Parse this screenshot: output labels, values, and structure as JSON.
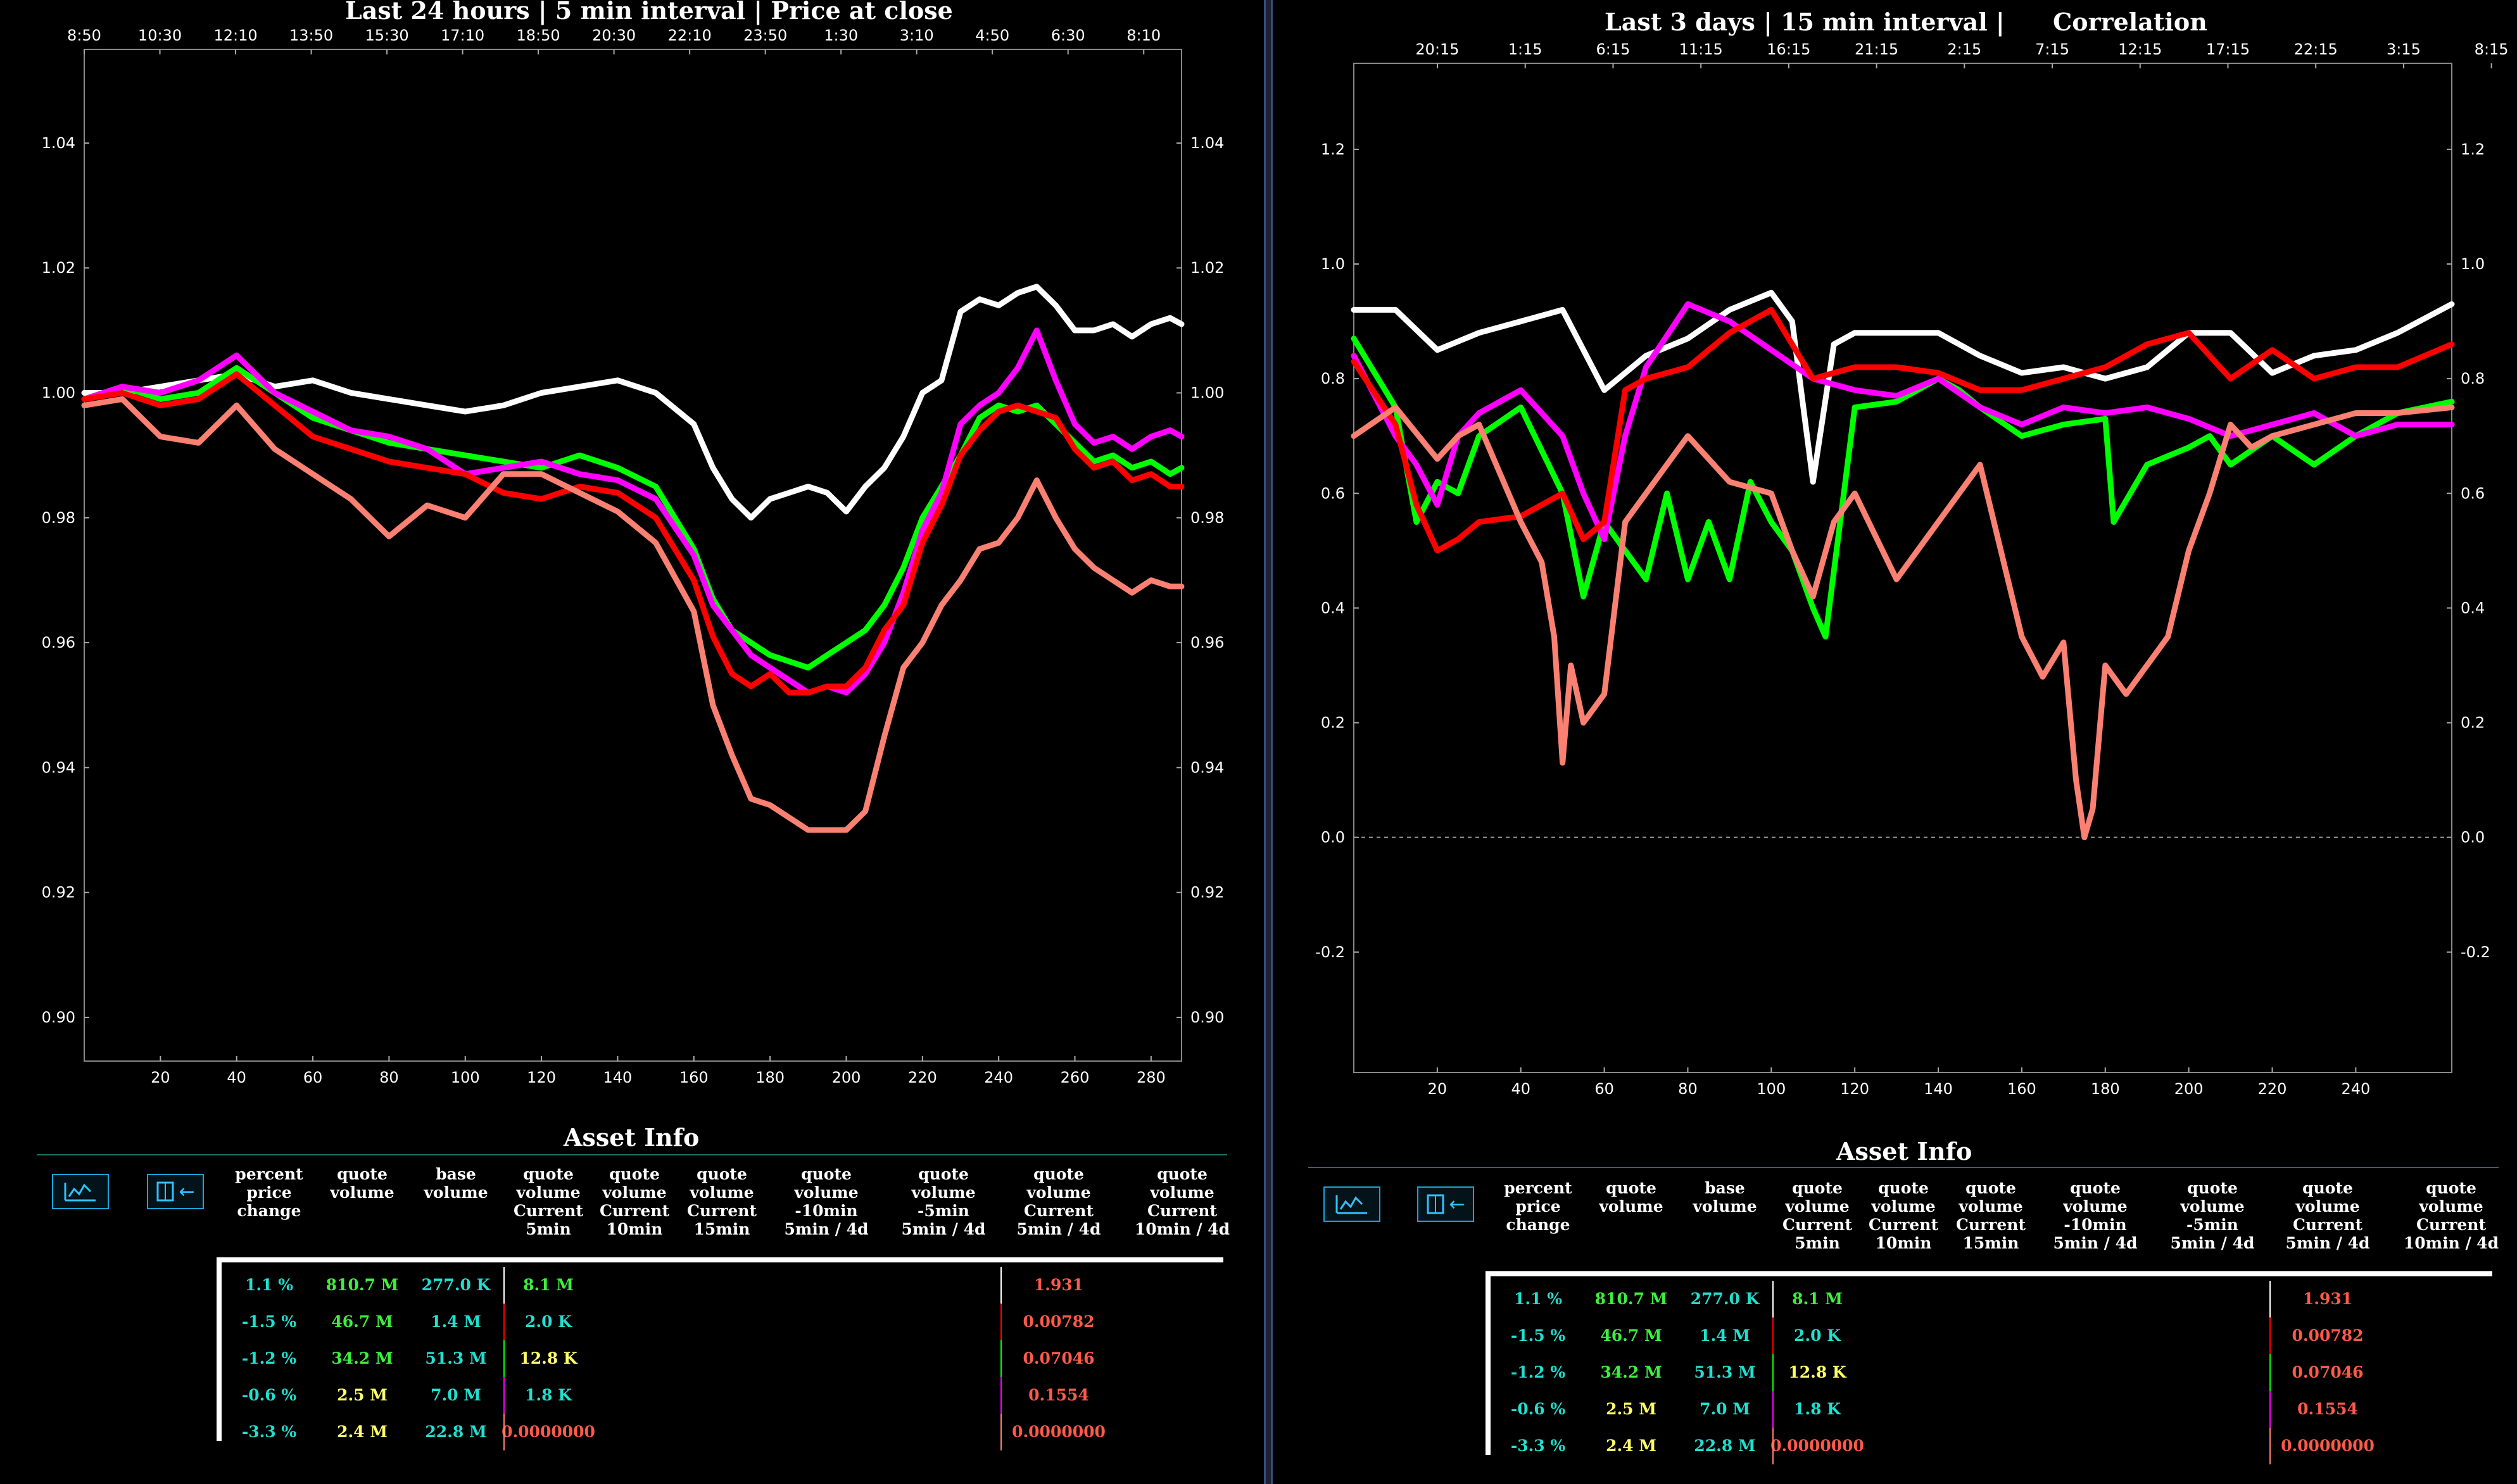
{
  "colors": {
    "white": "#ffffff",
    "red": "#ff0000",
    "green": "#00ff00",
    "magenta": "#ff00ff",
    "salmon": "#fa8072",
    "cyan": "#20e0d0",
    "lime": "#3df03d",
    "yellow": "#ffff66",
    "tomato": "#ff5a4a"
  },
  "left": {
    "title": "Last 24 hours | 5 min interval | Price at close",
    "chart_data": {
      "type": "line",
      "title": "Last 24 hours | 5 min interval | Price at close",
      "top_ticks": [
        "8:50",
        "10:30",
        "12:10",
        "13:50",
        "15:30",
        "17:10",
        "18:50",
        "20:30",
        "22:10",
        "23:50",
        "1:30",
        "3:10",
        "4:50",
        "6:30",
        "8:10"
      ],
      "x_ticks": [
        20,
        40,
        60,
        80,
        100,
        120,
        140,
        160,
        180,
        200,
        220,
        240,
        260,
        280
      ],
      "y_ticks": [
        0.9,
        0.92,
        0.94,
        0.96,
        0.98,
        1.0,
        1.02,
        1.04
      ],
      "y_tick_labels": [
        "0.90",
        "0.92",
        "0.94",
        "0.96",
        "0.98",
        "1.00",
        "1.02",
        "1.04"
      ],
      "xlim": [
        0,
        288
      ],
      "ylim": [
        0.893,
        1.055
      ],
      "grid": false,
      "series": [
        {
          "color": "white",
          "x": [
            0,
            10,
            20,
            30,
            40,
            50,
            60,
            70,
            80,
            90,
            100,
            110,
            120,
            130,
            140,
            150,
            160,
            165,
            170,
            175,
            180,
            185,
            190,
            195,
            200,
            205,
            210,
            215,
            220,
            225,
            230,
            235,
            240,
            245,
            250,
            255,
            260,
            265,
            270,
            275,
            280,
            285,
            288
          ],
          "y": [
            1.0,
            1.0,
            1.001,
            1.002,
            1.003,
            1.001,
            1.002,
            1.0,
            0.999,
            0.998,
            0.997,
            0.998,
            1.0,
            1.001,
            1.002,
            1.0,
            0.995,
            0.988,
            0.983,
            0.98,
            0.983,
            0.984,
            0.985,
            0.984,
            0.981,
            0.985,
            0.988,
            0.993,
            1.0,
            1.002,
            1.013,
            1.015,
            1.014,
            1.016,
            1.017,
            1.014,
            1.01,
            1.01,
            1.011,
            1.009,
            1.011,
            1.012,
            1.011
          ]
        },
        {
          "color": "green",
          "x": [
            0,
            10,
            20,
            30,
            40,
            50,
            60,
            70,
            80,
            90,
            100,
            110,
            120,
            130,
            140,
            150,
            160,
            165,
            170,
            175,
            180,
            185,
            190,
            195,
            200,
            205,
            210,
            215,
            220,
            225,
            230,
            235,
            240,
            245,
            250,
            255,
            260,
            265,
            270,
            275,
            280,
            285,
            288
          ],
          "y": [
            0.999,
            1.001,
            0.999,
            1.0,
            1.004,
            1.0,
            0.996,
            0.994,
            0.992,
            0.991,
            0.99,
            0.989,
            0.988,
            0.99,
            0.988,
            0.985,
            0.975,
            0.967,
            0.962,
            0.96,
            0.958,
            0.957,
            0.956,
            0.958,
            0.96,
            0.962,
            0.966,
            0.972,
            0.98,
            0.985,
            0.99,
            0.996,
            0.998,
            0.997,
            0.998,
            0.995,
            0.992,
            0.989,
            0.99,
            0.988,
            0.989,
            0.987,
            0.988
          ]
        },
        {
          "color": "magenta",
          "x": [
            0,
            10,
            20,
            30,
            40,
            50,
            60,
            70,
            80,
            90,
            100,
            110,
            120,
            130,
            140,
            150,
            160,
            165,
            170,
            175,
            180,
            185,
            190,
            195,
            200,
            205,
            210,
            215,
            220,
            225,
            230,
            235,
            240,
            245,
            250,
            255,
            260,
            265,
            270,
            275,
            280,
            285,
            288
          ],
          "y": [
            0.999,
            1.001,
            1.0,
            1.002,
            1.006,
            1.0,
            0.997,
            0.994,
            0.993,
            0.991,
            0.987,
            0.988,
            0.989,
            0.987,
            0.986,
            0.983,
            0.974,
            0.966,
            0.962,
            0.958,
            0.956,
            0.954,
            0.952,
            0.953,
            0.952,
            0.955,
            0.96,
            0.968,
            0.978,
            0.984,
            0.995,
            0.998,
            1.0,
            1.004,
            1.01,
            1.002,
            0.995,
            0.992,
            0.993,
            0.991,
            0.993,
            0.994,
            0.993
          ]
        },
        {
          "color": "red",
          "x": [
            0,
            10,
            20,
            30,
            40,
            50,
            60,
            70,
            80,
            90,
            100,
            110,
            120,
            130,
            140,
            150,
            160,
            165,
            170,
            175,
            180,
            185,
            190,
            195,
            200,
            205,
            210,
            215,
            220,
            225,
            230,
            235,
            240,
            245,
            250,
            255,
            260,
            265,
            270,
            275,
            280,
            285,
            288
          ],
          "y": [
            0.999,
            1.0,
            0.998,
            0.999,
            1.003,
            0.998,
            0.993,
            0.991,
            0.989,
            0.988,
            0.987,
            0.984,
            0.983,
            0.985,
            0.984,
            0.98,
            0.97,
            0.961,
            0.955,
            0.953,
            0.955,
            0.952,
            0.952,
            0.953,
            0.953,
            0.956,
            0.962,
            0.966,
            0.976,
            0.982,
            0.99,
            0.994,
            0.997,
            0.998,
            0.997,
            0.996,
            0.991,
            0.988,
            0.989,
            0.986,
            0.987,
            0.985,
            0.985
          ]
        },
        {
          "color": "salmon",
          "x": [
            0,
            10,
            20,
            30,
            40,
            50,
            60,
            70,
            80,
            90,
            100,
            110,
            120,
            130,
            140,
            150,
            160,
            165,
            170,
            175,
            180,
            185,
            190,
            195,
            200,
            205,
            210,
            215,
            220,
            225,
            230,
            235,
            240,
            245,
            250,
            255,
            260,
            265,
            270,
            275,
            280,
            285,
            288
          ],
          "y": [
            0.998,
            0.999,
            0.993,
            0.992,
            0.998,
            0.991,
            0.987,
            0.983,
            0.977,
            0.982,
            0.98,
            0.987,
            0.987,
            0.984,
            0.981,
            0.976,
            0.965,
            0.95,
            0.942,
            0.935,
            0.934,
            0.932,
            0.93,
            0.93,
            0.93,
            0.933,
            0.945,
            0.956,
            0.96,
            0.966,
            0.97,
            0.975,
            0.976,
            0.98,
            0.986,
            0.98,
            0.975,
            0.972,
            0.97,
            0.968,
            0.97,
            0.969,
            0.969
          ]
        }
      ]
    },
    "info_title": "Asset Info"
  },
  "right": {
    "title": "Last 3 days | 15 min interval |",
    "title2": "Correlation",
    "chart_data": {
      "type": "line",
      "title": "Last 3 days | 15 min interval | Correlation",
      "top_ticks": [
        "20:15",
        "1:15",
        "6:15",
        "11:15",
        "16:15",
        "21:15",
        "2:15",
        "7:15",
        "12:15",
        "17:15",
        "22:15",
        "3:15",
        "8:15"
      ],
      "x_ticks": [
        20,
        40,
        60,
        80,
        100,
        120,
        140,
        160,
        180,
        200,
        220,
        240
      ],
      "y_ticks": [
        -0.2,
        0.0,
        0.2,
        0.4,
        0.6,
        0.8,
        1.0,
        1.2
      ],
      "y_tick_labels": [
        "-0.2",
        "0.0",
        "0.2",
        "0.4",
        "0.6",
        "0.8",
        "1.0",
        "1.2"
      ],
      "xlim": [
        0,
        263
      ],
      "ylim": [
        -0.41,
        1.35
      ],
      "zero_line": true,
      "grid": false,
      "series": [
        {
          "color": "white",
          "x": [
            0,
            10,
            20,
            30,
            40,
            50,
            60,
            70,
            80,
            90,
            100,
            105,
            110,
            115,
            120,
            130,
            140,
            150,
            160,
            170,
            180,
            190,
            200,
            210,
            220,
            230,
            240,
            250,
            263
          ],
          "y": [
            0.92,
            0.92,
            0.85,
            0.88,
            0.9,
            0.92,
            0.78,
            0.84,
            0.87,
            0.92,
            0.95,
            0.9,
            0.62,
            0.86,
            0.88,
            0.88,
            0.88,
            0.84,
            0.81,
            0.82,
            0.8,
            0.82,
            0.88,
            0.88,
            0.81,
            0.84,
            0.85,
            0.88,
            0.93
          ]
        },
        {
          "color": "green",
          "x": [
            0,
            10,
            15,
            20,
            25,
            30,
            40,
            50,
            55,
            60,
            65,
            70,
            75,
            80,
            85,
            90,
            95,
            100,
            105,
            110,
            113,
            120,
            130,
            140,
            145,
            150,
            160,
            170,
            180,
            182,
            190,
            200,
            205,
            210,
            220,
            230,
            240,
            250,
            263
          ],
          "y": [
            0.87,
            0.75,
            0.55,
            0.62,
            0.6,
            0.7,
            0.75,
            0.6,
            0.42,
            0.55,
            0.5,
            0.45,
            0.6,
            0.45,
            0.55,
            0.45,
            0.62,
            0.55,
            0.5,
            0.4,
            0.35,
            0.75,
            0.76,
            0.8,
            0.78,
            0.75,
            0.7,
            0.72,
            0.73,
            0.55,
            0.65,
            0.68,
            0.7,
            0.65,
            0.7,
            0.65,
            0.7,
            0.74,
            0.76
          ]
        },
        {
          "color": "magenta",
          "x": [
            0,
            10,
            15,
            20,
            25,
            30,
            40,
            50,
            55,
            60,
            65,
            70,
            80,
            90,
            100,
            110,
            120,
            130,
            140,
            150,
            160,
            170,
            180,
            190,
            200,
            210,
            220,
            230,
            240,
            250,
            263
          ],
          "y": [
            0.84,
            0.7,
            0.65,
            0.58,
            0.7,
            0.74,
            0.78,
            0.7,
            0.6,
            0.52,
            0.7,
            0.82,
            0.93,
            0.9,
            0.85,
            0.8,
            0.78,
            0.77,
            0.8,
            0.75,
            0.72,
            0.75,
            0.74,
            0.75,
            0.73,
            0.7,
            0.72,
            0.74,
            0.7,
            0.72,
            0.72
          ]
        },
        {
          "color": "red",
          "x": [
            0,
            10,
            15,
            20,
            25,
            30,
            40,
            50,
            55,
            60,
            65,
            70,
            80,
            90,
            100,
            110,
            120,
            130,
            140,
            150,
            160,
            170,
            180,
            190,
            200,
            210,
            220,
            230,
            240,
            250,
            263
          ],
          "y": [
            0.83,
            0.72,
            0.58,
            0.5,
            0.52,
            0.55,
            0.56,
            0.6,
            0.52,
            0.55,
            0.78,
            0.8,
            0.82,
            0.88,
            0.92,
            0.8,
            0.82,
            0.82,
            0.81,
            0.78,
            0.78,
            0.8,
            0.82,
            0.86,
            0.88,
            0.8,
            0.85,
            0.8,
            0.82,
            0.82,
            0.86
          ]
        },
        {
          "color": "salmon",
          "x": [
            0,
            10,
            20,
            25,
            30,
            40,
            45,
            48,
            50,
            52,
            55,
            60,
            65,
            70,
            80,
            90,
            100,
            105,
            110,
            115,
            120,
            130,
            140,
            150,
            155,
            160,
            165,
            170,
            173,
            175,
            177,
            180,
            185,
            190,
            195,
            200,
            205,
            210,
            215,
            220,
            230,
            240,
            250,
            263
          ],
          "y": [
            0.7,
            0.75,
            0.66,
            0.7,
            0.72,
            0.55,
            0.48,
            0.35,
            0.13,
            0.3,
            0.2,
            0.25,
            0.55,
            0.6,
            0.7,
            0.62,
            0.6,
            0.5,
            0.42,
            0.55,
            0.6,
            0.45,
            0.55,
            0.65,
            0.5,
            0.35,
            0.28,
            0.34,
            0.1,
            0.0,
            0.05,
            0.3,
            0.25,
            0.3,
            0.35,
            0.5,
            0.6,
            0.72,
            0.68,
            0.7,
            0.72,
            0.74,
            0.74,
            0.75
          ]
        }
      ]
    },
    "info_title": "Asset Info"
  },
  "table": {
    "headers": [
      "percent\nprice\nchange",
      "quote\nvolume",
      "base\nvolume",
      "quote\nvolume\nCurrent\n5min",
      "quote\nvolume\nCurrent\n10min",
      "quote\nvolume\nCurrent\n15min",
      "quote\nvolume\n-10min\n5min / 4d",
      "quote\nvolume\n-5min\n5min / 4d",
      "quote\nvolume\nCurrent\n5min / 4d",
      "quote\nvolume\nCurrent\n10min / 4d"
    ],
    "rows": [
      {
        "pct": "1.1 %",
        "qvol": "810.7 M",
        "bvol": "277.0 K",
        "cur5": "8.1 M",
        "ratio": "1.931",
        "pct_color": "cyan",
        "qvol_color": "lime",
        "bvol_color": "cyan",
        "cur5_color": "lime",
        "sep": "white"
      },
      {
        "pct": "-1.5 %",
        "qvol": "46.7 M",
        "bvol": "1.4 M",
        "cur5": "2.0 K",
        "ratio": "0.00782",
        "pct_color": "cyan",
        "qvol_color": "lime",
        "bvol_color": "cyan",
        "cur5_color": "cyan",
        "sep": "red"
      },
      {
        "pct": "-1.2 %",
        "qvol": "34.2 M",
        "bvol": "51.3 M",
        "cur5": "12.8 K",
        "ratio": "0.07046",
        "pct_color": "cyan",
        "qvol_color": "lime",
        "bvol_color": "cyan",
        "cur5_color": "yellow",
        "sep": "green"
      },
      {
        "pct": "-0.6 %",
        "qvol": "2.5 M",
        "bvol": "7.0 M",
        "cur5": "1.8 K",
        "ratio": "0.1554",
        "pct_color": "cyan",
        "qvol_color": "yellow",
        "bvol_color": "cyan",
        "cur5_color": "cyan",
        "sep": "magenta"
      },
      {
        "pct": "-3.3 %",
        "qvol": "2.4 M",
        "bvol": "22.8 M",
        "cur5": "0.0000000",
        "ratio": "0.0000000",
        "pct_color": "cyan",
        "qvol_color": "yellow",
        "bvol_color": "cyan",
        "cur5_color": "tomato",
        "sep": "salmon"
      }
    ]
  },
  "buttons": {
    "chart_icon": "chart-icon",
    "back_icon": "back-arrow-icon",
    "back_glyph": "←"
  }
}
